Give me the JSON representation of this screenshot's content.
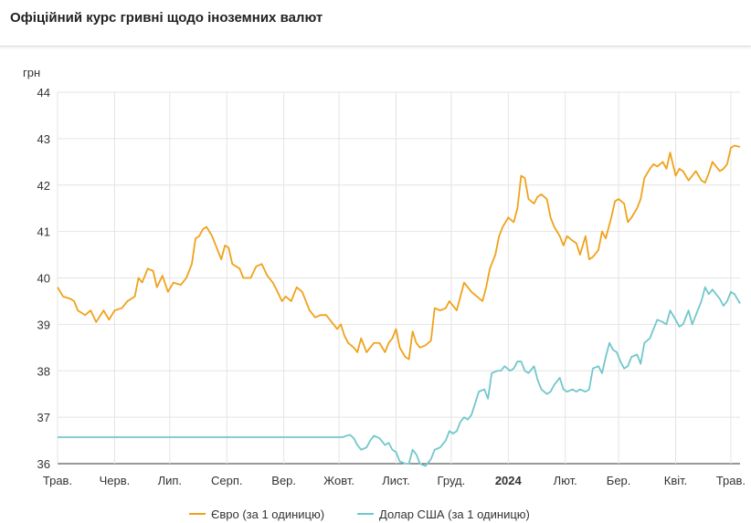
{
  "title": "Офіційний курс гривні щодо іноземних валют",
  "colors": {
    "euro": "#f0a21b",
    "usd": "#72c7cc",
    "grid": "#e4e4e4",
    "axis": "#333333"
  },
  "chart_data": {
    "type": "line",
    "ylabel": "грн",
    "ylim": [
      36,
      44
    ],
    "yticks": [
      "36",
      "37",
      "38",
      "39",
      "40",
      "41",
      "42",
      "43",
      "44"
    ],
    "xlim": [
      "2023-05-01",
      "2024-05-06"
    ],
    "xticks": [
      {
        "date": "2023-05-01",
        "label": "Трав.",
        "bold": false
      },
      {
        "date": "2023-06-01",
        "label": "Черв.",
        "bold": false
      },
      {
        "date": "2023-07-01",
        "label": "Лип.",
        "bold": false
      },
      {
        "date": "2023-08-01",
        "label": "Серп.",
        "bold": false
      },
      {
        "date": "2023-09-01",
        "label": "Вер.",
        "bold": false
      },
      {
        "date": "2023-10-01",
        "label": "Жовт.",
        "bold": false
      },
      {
        "date": "2023-11-01",
        "label": "Лист.",
        "bold": false
      },
      {
        "date": "2023-12-01",
        "label": "Груд.",
        "bold": false
      },
      {
        "date": "2024-01-01",
        "label": "2024",
        "bold": true
      },
      {
        "date": "2024-02-01",
        "label": "Лют.",
        "bold": false
      },
      {
        "date": "2024-03-01",
        "label": "Бер.",
        "bold": false
      },
      {
        "date": "2024-04-01",
        "label": "Квіт.",
        "bold": false
      },
      {
        "date": "2024-05-01",
        "label": "Трав.",
        "bold": false
      }
    ],
    "grid": true,
    "legend_position": "bottom",
    "series": [
      {
        "name": "Євро (за 1 одиницю)",
        "color": "#f0a21b",
        "points": [
          [
            "2023-05-01",
            39.8
          ],
          [
            "2023-05-04",
            39.6
          ],
          [
            "2023-05-08",
            39.55
          ],
          [
            "2023-05-10",
            39.5
          ],
          [
            "2023-05-12",
            39.3
          ],
          [
            "2023-05-16",
            39.2
          ],
          [
            "2023-05-19",
            39.3
          ],
          [
            "2023-05-22",
            39.05
          ],
          [
            "2023-05-26",
            39.3
          ],
          [
            "2023-05-29",
            39.1
          ],
          [
            "2023-06-01",
            39.3
          ],
          [
            "2023-06-05",
            39.35
          ],
          [
            "2023-06-08",
            39.5
          ],
          [
            "2023-06-12",
            39.6
          ],
          [
            "2023-06-14",
            40.0
          ],
          [
            "2023-06-16",
            39.9
          ],
          [
            "2023-06-19",
            40.2
          ],
          [
            "2023-06-22",
            40.15
          ],
          [
            "2023-06-24",
            39.8
          ],
          [
            "2023-06-27",
            40.05
          ],
          [
            "2023-06-30",
            39.7
          ],
          [
            "2023-07-03",
            39.9
          ],
          [
            "2023-07-07",
            39.85
          ],
          [
            "2023-07-10",
            40.0
          ],
          [
            "2023-07-13",
            40.3
          ],
          [
            "2023-07-15",
            40.85
          ],
          [
            "2023-07-17",
            40.9
          ],
          [
            "2023-07-19",
            41.05
          ],
          [
            "2023-07-21",
            41.1
          ],
          [
            "2023-07-24",
            40.9
          ],
          [
            "2023-07-27",
            40.6
          ],
          [
            "2023-07-29",
            40.4
          ],
          [
            "2023-07-31",
            40.7
          ],
          [
            "2023-08-02",
            40.65
          ],
          [
            "2023-08-04",
            40.3
          ],
          [
            "2023-08-08",
            40.2
          ],
          [
            "2023-08-10",
            40.0
          ],
          [
            "2023-08-14",
            40.0
          ],
          [
            "2023-08-17",
            40.25
          ],
          [
            "2023-08-20",
            40.3
          ],
          [
            "2023-08-23",
            40.05
          ],
          [
            "2023-08-26",
            39.9
          ],
          [
            "2023-08-28",
            39.75
          ],
          [
            "2023-08-31",
            39.5
          ],
          [
            "2023-09-02",
            39.6
          ],
          [
            "2023-09-05",
            39.5
          ],
          [
            "2023-09-08",
            39.8
          ],
          [
            "2023-09-11",
            39.7
          ],
          [
            "2023-09-13",
            39.5
          ],
          [
            "2023-09-15",
            39.3
          ],
          [
            "2023-09-18",
            39.15
          ],
          [
            "2023-09-21",
            39.2
          ],
          [
            "2023-09-24",
            39.2
          ],
          [
            "2023-09-27",
            39.05
          ],
          [
            "2023-09-30",
            38.9
          ],
          [
            "2023-10-02",
            39.0
          ],
          [
            "2023-10-04",
            38.75
          ],
          [
            "2023-10-06",
            38.6
          ],
          [
            "2023-10-09",
            38.5
          ],
          [
            "2023-10-11",
            38.4
          ],
          [
            "2023-10-13",
            38.7
          ],
          [
            "2023-10-16",
            38.4
          ],
          [
            "2023-10-18",
            38.5
          ],
          [
            "2023-10-20",
            38.6
          ],
          [
            "2023-10-23",
            38.6
          ],
          [
            "2023-10-26",
            38.4
          ],
          [
            "2023-10-28",
            38.6
          ],
          [
            "2023-10-30",
            38.7
          ],
          [
            "2023-11-01",
            38.9
          ],
          [
            "2023-11-03",
            38.5
          ],
          [
            "2023-11-06",
            38.3
          ],
          [
            "2023-11-08",
            38.25
          ],
          [
            "2023-11-10",
            38.85
          ],
          [
            "2023-11-12",
            38.6
          ],
          [
            "2023-11-14",
            38.5
          ],
          [
            "2023-11-17",
            38.55
          ],
          [
            "2023-11-20",
            38.65
          ],
          [
            "2023-11-22",
            39.35
          ],
          [
            "2023-11-25",
            39.3
          ],
          [
            "2023-11-28",
            39.35
          ],
          [
            "2023-11-30",
            39.5
          ],
          [
            "2023-12-02",
            39.4
          ],
          [
            "2023-12-04",
            39.3
          ],
          [
            "2023-12-06",
            39.6
          ],
          [
            "2023-12-08",
            39.9
          ],
          [
            "2023-12-10",
            39.8
          ],
          [
            "2023-12-12",
            39.7
          ],
          [
            "2023-12-15",
            39.6
          ],
          [
            "2023-12-18",
            39.5
          ],
          [
            "2023-12-20",
            39.8
          ],
          [
            "2023-12-22",
            40.2
          ],
          [
            "2023-12-25",
            40.5
          ],
          [
            "2023-12-27",
            40.9
          ],
          [
            "2023-12-29",
            41.1
          ],
          [
            "2024-01-01",
            41.3
          ],
          [
            "2024-01-04",
            41.2
          ],
          [
            "2024-01-06",
            41.5
          ],
          [
            "2024-01-08",
            42.2
          ],
          [
            "2024-01-10",
            42.15
          ],
          [
            "2024-01-12",
            41.7
          ],
          [
            "2024-01-15",
            41.6
          ],
          [
            "2024-01-17",
            41.75
          ],
          [
            "2024-01-19",
            41.8
          ],
          [
            "2024-01-22",
            41.7
          ],
          [
            "2024-01-24",
            41.3
          ],
          [
            "2024-01-26",
            41.1
          ],
          [
            "2024-01-29",
            40.9
          ],
          [
            "2024-01-31",
            40.7
          ],
          [
            "2024-02-02",
            40.9
          ],
          [
            "2024-02-05",
            40.8
          ],
          [
            "2024-02-07",
            40.75
          ],
          [
            "2024-02-09",
            40.5
          ],
          [
            "2024-02-12",
            40.9
          ],
          [
            "2024-02-14",
            40.4
          ],
          [
            "2024-02-16",
            40.45
          ],
          [
            "2024-02-19",
            40.6
          ],
          [
            "2024-02-21",
            41.0
          ],
          [
            "2024-02-23",
            40.85
          ],
          [
            "2024-02-26",
            41.3
          ],
          [
            "2024-02-28",
            41.65
          ],
          [
            "2024-03-01",
            41.7
          ],
          [
            "2024-03-04",
            41.6
          ],
          [
            "2024-03-06",
            41.2
          ],
          [
            "2024-03-08",
            41.3
          ],
          [
            "2024-03-11",
            41.5
          ],
          [
            "2024-03-13",
            41.7
          ],
          [
            "2024-03-15",
            42.15
          ],
          [
            "2024-03-18",
            42.35
          ],
          [
            "2024-03-20",
            42.45
          ],
          [
            "2024-03-22",
            42.4
          ],
          [
            "2024-03-25",
            42.5
          ],
          [
            "2024-03-27",
            42.35
          ],
          [
            "2024-03-29",
            42.7
          ],
          [
            "2024-04-01",
            42.2
          ],
          [
            "2024-04-03",
            42.35
          ],
          [
            "2024-04-05",
            42.3
          ],
          [
            "2024-04-08",
            42.1
          ],
          [
            "2024-04-10",
            42.2
          ],
          [
            "2024-04-12",
            42.3
          ],
          [
            "2024-04-15",
            42.1
          ],
          [
            "2024-04-17",
            42.05
          ],
          [
            "2024-04-19",
            42.25
          ],
          [
            "2024-04-21",
            42.5
          ],
          [
            "2024-04-23",
            42.4
          ],
          [
            "2024-04-25",
            42.3
          ],
          [
            "2024-04-27",
            42.35
          ],
          [
            "2024-04-29",
            42.45
          ],
          [
            "2024-05-01",
            42.8
          ],
          [
            "2024-05-03",
            42.85
          ],
          [
            "2024-05-06",
            42.82
          ]
        ]
      },
      {
        "name": "Долар США (за 1 одиницю)",
        "color": "#72c7cc",
        "points": [
          [
            "2023-05-01",
            36.57
          ],
          [
            "2023-10-03",
            36.57
          ],
          [
            "2023-10-05",
            36.6
          ],
          [
            "2023-10-07",
            36.62
          ],
          [
            "2023-10-09",
            36.55
          ],
          [
            "2023-10-11",
            36.4
          ],
          [
            "2023-10-13",
            36.3
          ],
          [
            "2023-10-16",
            36.35
          ],
          [
            "2023-10-18",
            36.5
          ],
          [
            "2023-10-20",
            36.6
          ],
          [
            "2023-10-23",
            36.55
          ],
          [
            "2023-10-26",
            36.4
          ],
          [
            "2023-10-28",
            36.45
          ],
          [
            "2023-10-30",
            36.3
          ],
          [
            "2023-11-01",
            36.25
          ],
          [
            "2023-11-03",
            36.05
          ],
          [
            "2023-11-06",
            36.0
          ],
          [
            "2023-11-08",
            36.0
          ],
          [
            "2023-11-10",
            36.3
          ],
          [
            "2023-11-12",
            36.2
          ],
          [
            "2023-11-14",
            36.0
          ],
          [
            "2023-11-17",
            35.95
          ],
          [
            "2023-11-20",
            36.1
          ],
          [
            "2023-11-22",
            36.3
          ],
          [
            "2023-11-25",
            36.35
          ],
          [
            "2023-11-28",
            36.5
          ],
          [
            "2023-11-30",
            36.7
          ],
          [
            "2023-12-02",
            36.65
          ],
          [
            "2023-12-04",
            36.7
          ],
          [
            "2023-12-06",
            36.9
          ],
          [
            "2023-12-08",
            37.0
          ],
          [
            "2023-12-10",
            36.95
          ],
          [
            "2023-12-12",
            37.05
          ],
          [
            "2023-12-14",
            37.3
          ],
          [
            "2023-12-16",
            37.55
          ],
          [
            "2023-12-19",
            37.6
          ],
          [
            "2023-12-21",
            37.4
          ],
          [
            "2023-12-23",
            37.95
          ],
          [
            "2023-12-26",
            38.0
          ],
          [
            "2023-12-28",
            38.0
          ],
          [
            "2023-12-30",
            38.1
          ],
          [
            "2024-01-02",
            38.0
          ],
          [
            "2024-01-04",
            38.05
          ],
          [
            "2024-01-06",
            38.2
          ],
          [
            "2024-01-08",
            38.2
          ],
          [
            "2024-01-10",
            38.0
          ],
          [
            "2024-01-12",
            37.95
          ],
          [
            "2024-01-15",
            38.1
          ],
          [
            "2024-01-17",
            37.8
          ],
          [
            "2024-01-19",
            37.6
          ],
          [
            "2024-01-22",
            37.5
          ],
          [
            "2024-01-24",
            37.55
          ],
          [
            "2024-01-26",
            37.7
          ],
          [
            "2024-01-29",
            37.85
          ],
          [
            "2024-01-31",
            37.6
          ],
          [
            "2024-02-02",
            37.55
          ],
          [
            "2024-02-05",
            37.6
          ],
          [
            "2024-02-07",
            37.55
          ],
          [
            "2024-02-09",
            37.6
          ],
          [
            "2024-02-12",
            37.55
          ],
          [
            "2024-02-14",
            37.6
          ],
          [
            "2024-02-16",
            38.05
          ],
          [
            "2024-02-19",
            38.1
          ],
          [
            "2024-02-21",
            37.95
          ],
          [
            "2024-02-23",
            38.3
          ],
          [
            "2024-02-25",
            38.6
          ],
          [
            "2024-02-27",
            38.45
          ],
          [
            "2024-02-29",
            38.4
          ],
          [
            "2024-03-02",
            38.2
          ],
          [
            "2024-03-04",
            38.05
          ],
          [
            "2024-03-06",
            38.1
          ],
          [
            "2024-03-08",
            38.3
          ],
          [
            "2024-03-11",
            38.35
          ],
          [
            "2024-03-13",
            38.15
          ],
          [
            "2024-03-15",
            38.6
          ],
          [
            "2024-03-18",
            38.7
          ],
          [
            "2024-03-20",
            38.9
          ],
          [
            "2024-03-22",
            39.1
          ],
          [
            "2024-03-25",
            39.05
          ],
          [
            "2024-03-27",
            39.0
          ],
          [
            "2024-03-29",
            39.3
          ],
          [
            "2024-04-01",
            39.1
          ],
          [
            "2024-04-03",
            38.95
          ],
          [
            "2024-04-05",
            39.0
          ],
          [
            "2024-04-08",
            39.3
          ],
          [
            "2024-04-10",
            39.0
          ],
          [
            "2024-04-12",
            39.2
          ],
          [
            "2024-04-15",
            39.5
          ],
          [
            "2024-04-17",
            39.8
          ],
          [
            "2024-04-19",
            39.65
          ],
          [
            "2024-04-21",
            39.75
          ],
          [
            "2024-04-23",
            39.65
          ],
          [
            "2024-04-25",
            39.55
          ],
          [
            "2024-04-27",
            39.4
          ],
          [
            "2024-04-29",
            39.5
          ],
          [
            "2024-05-01",
            39.7
          ],
          [
            "2024-05-03",
            39.65
          ],
          [
            "2024-05-06",
            39.45
          ]
        ]
      }
    ]
  }
}
